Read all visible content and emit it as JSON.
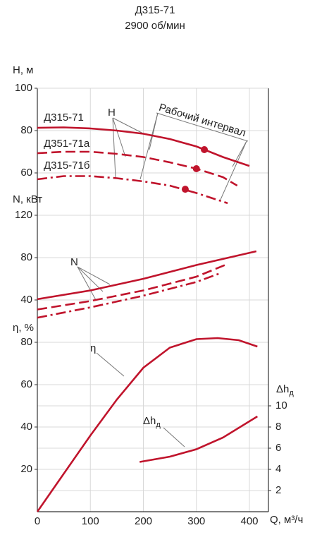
{
  "chart_data": [
    {
      "type": "line",
      "title": "Д315-71",
      "subtitle": "2900 об/мин",
      "ylabel": "H, м",
      "curve_label": "H",
      "annotation": "Рабочий интервал",
      "ylim": [
        40,
        100
      ],
      "yticks": [
        60,
        80,
        100
      ],
      "grid": true,
      "series": [
        {
          "name": "Д315-71",
          "color": "#c0142c",
          "dash": "solid",
          "x": [
            0,
            50,
            100,
            150,
            200,
            250,
            300,
            350,
            400
          ],
          "values": [
            81.3,
            81.5,
            81,
            80,
            78.5,
            76,
            72.5,
            67.5,
            63.3
          ]
        },
        {
          "name": "Д351-71а",
          "color": "#c0142c",
          "dash": "dashed",
          "x": [
            0,
            50,
            100,
            150,
            200,
            250,
            300,
            350,
            377
          ],
          "values": [
            69.3,
            70,
            70,
            69,
            67.5,
            65,
            62,
            58,
            54
          ]
        },
        {
          "name": "Д315-71б",
          "color": "#c0142c",
          "dash": "dashdot",
          "x": [
            0,
            50,
            100,
            150,
            200,
            250,
            300,
            359
          ],
          "values": [
            57,
            58.5,
            58.5,
            57.5,
            56,
            54,
            50.5,
            45.7
          ]
        }
      ],
      "points": [
        {
          "x": 315,
          "y": 71
        },
        {
          "x": 300,
          "y": 62
        },
        {
          "x": 279,
          "y": 52.3
        }
      ]
    },
    {
      "type": "line",
      "ylabel": "N, кВт",
      "curve_label": "N",
      "ylim": [
        0,
        120
      ],
      "yticks": [
        40,
        80,
        120
      ],
      "grid": true,
      "series": [
        {
          "color": "#c0142c",
          "dash": "solid",
          "x": [
            0,
            100,
            200,
            300,
            413
          ],
          "values": [
            40.7,
            49,
            60,
            73,
            86
          ]
        },
        {
          "color": "#c0142c",
          "dash": "dashed",
          "x": [
            0,
            100,
            200,
            300,
            359
          ],
          "values": [
            31,
            39,
            49,
            62,
            74
          ]
        },
        {
          "color": "#c0142c",
          "dash": "dashdot",
          "x": [
            0,
            100,
            200,
            300,
            342
          ],
          "values": [
            23.3,
            33,
            44,
            57,
            64.7
          ]
        }
      ]
    },
    {
      "type": "line",
      "ylabel": "η, %",
      "curve_label": "η",
      "ylim": [
        0,
        80
      ],
      "yticks": [
        20,
        40,
        60,
        80
      ],
      "grid": true,
      "xlabel": "Q, м³/ч",
      "xlim": [
        0,
        436
      ],
      "xticks": [
        0,
        100,
        200,
        300,
        400
      ],
      "series": [
        {
          "color": "#c0142c",
          "dash": "solid",
          "x": [
            0,
            50,
            100,
            150,
            200,
            250,
            300,
            340,
            380,
            415
          ],
          "values": [
            0,
            18,
            36,
            53,
            68,
            77.5,
            81.5,
            82,
            81,
            78
          ]
        }
      ]
    },
    {
      "type": "line",
      "ylabel": {
        "text": "Δh",
        "sub": "д"
      },
      "curve_label": {
        "text": "Δh",
        "sub": "д"
      },
      "axis_side": "right",
      "ylim": [
        0,
        10
      ],
      "yticks": [
        2,
        4,
        6,
        8,
        10
      ],
      "grid": true,
      "series": [
        {
          "color": "#c0142c",
          "dash": "solid",
          "x": [
            193,
            250,
            300,
            350,
            415
          ],
          "values": [
            4.7,
            5.2,
            5.9,
            7,
            9
          ]
        }
      ]
    }
  ]
}
